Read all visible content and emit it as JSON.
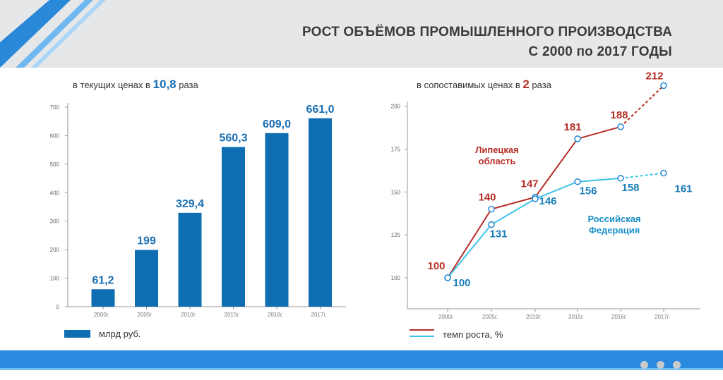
{
  "header": {
    "title_line1": "РОСТ ОБЪЁМОВ ПРОМЫШЛЕННОГО ПРОИЗВОДСТВА",
    "title_line2": "С 2000 по 2017 ГОДЫ"
  },
  "left_chart": {
    "subtitle_before": "в текущих ценах в ",
    "subtitle_number": "10,8",
    "subtitle_after": " раза",
    "legend_label": "млрд  руб."
  },
  "right_chart": {
    "subtitle_before": "в сопоставимых ценах в ",
    "subtitle_number": "2",
    "subtitle_after": " раза",
    "legend_label": "темп роста, %",
    "label_lipetsk": "Липецкая\nобласть",
    "label_rf": "Российская\nФедерация"
  },
  "colors": {
    "bar": "#0f6db2",
    "bar_label": "#1a6fb3",
    "lipetsk": "#b72d27",
    "rf": "#3cc3e8",
    "accent_blue": "#1e86d4"
  },
  "chart_data": [
    {
      "type": "bar",
      "categories": [
        "2000г.",
        "2005г.",
        "2010г.",
        "2015г.",
        "2016г.",
        "2017г."
      ],
      "values": [
        61.2,
        199,
        329.4,
        560.3,
        609.0,
        661.0
      ],
      "value_labels": [
        "61,2",
        "199",
        "329,4",
        "560,3",
        "609,0",
        "661,0"
      ],
      "ylim": [
        0,
        700
      ],
      "yticks": [
        0,
        100,
        200,
        300,
        400,
        500,
        600,
        700
      ],
      "legend": [
        "млрд  руб."
      ]
    },
    {
      "type": "line",
      "categories": [
        "2000г.",
        "2005г.",
        "2010г.",
        "2015г.",
        "2016г.",
        "2017г."
      ],
      "ylim": [
        90,
        200
      ],
      "yticks": [
        100,
        125,
        150,
        175,
        200
      ],
      "series": [
        {
          "name": "Липецкая область",
          "values": [
            100,
            140,
            147,
            181,
            188,
            212
          ],
          "dashed_last_segment": true
        },
        {
          "name": "Российская Федерация",
          "values": [
            100,
            131,
            146,
            156,
            158,
            161
          ],
          "dashed_last_segment": true
        }
      ],
      "legend": [
        "темп роста, %"
      ]
    }
  ]
}
